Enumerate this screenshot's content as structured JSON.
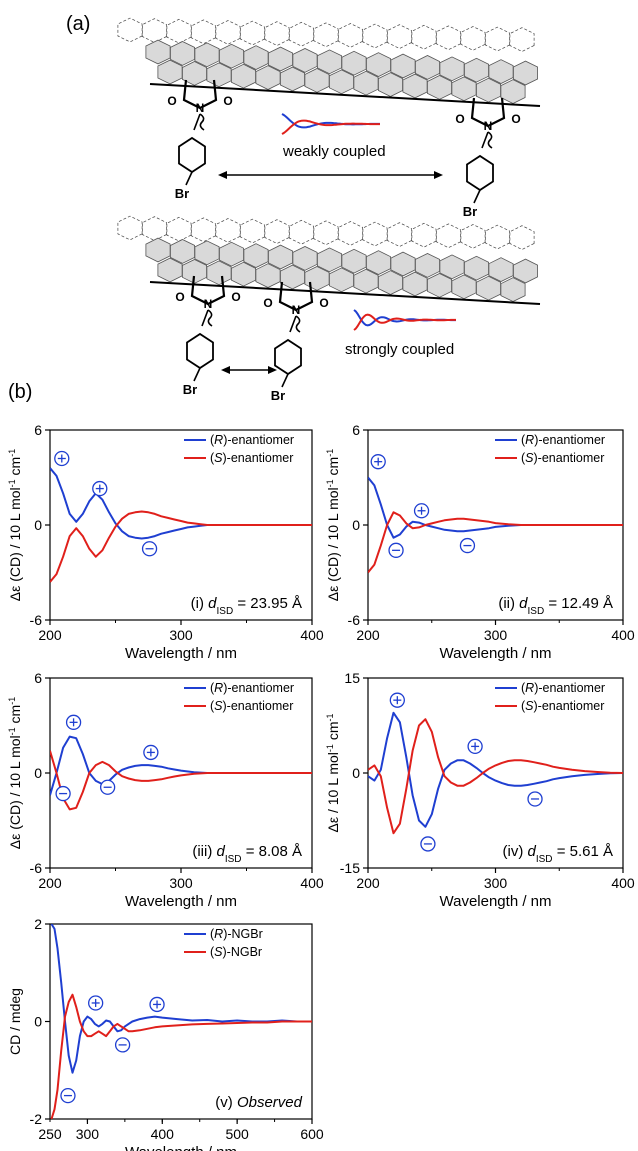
{
  "panel_a": {
    "label": "(a)",
    "weak_label": "weakly coupled",
    "strong_label": "strongly coupled",
    "atom_labels": [
      "Br",
      "N",
      "O"
    ]
  },
  "panel_b": {
    "label": "(b)"
  },
  "colors": {
    "blue": "#1f3fd1",
    "red": "#e0201b",
    "sign": "#1f3fd1",
    "graphene_fill": "#d9d9d9"
  },
  "chart_data": [
    {
      "type": "line",
      "title": "(i) d_ISD = 23.95 Å",
      "label_prefix": "(i) ",
      "label_sub": "ISD",
      "label_value": " = 23.95 Å",
      "xlabel": "Wavelength / nm",
      "ylabel": "Δε (CD) / 10 L mol-1 cm-1",
      "xlim": [
        200,
        400
      ],
      "ylim": [
        -6,
        6
      ],
      "xticks": [
        "200",
        "300",
        "400"
      ],
      "yticks": [
        "6",
        "0",
        "-6"
      ],
      "x": [
        200,
        205,
        210,
        215,
        220,
        225,
        230,
        235,
        240,
        245,
        250,
        255,
        260,
        265,
        270,
        275,
        280,
        285,
        290,
        295,
        300,
        305,
        310,
        315,
        320,
        330,
        340,
        360,
        380,
        400
      ],
      "series": [
        {
          "name": "(R)-enantiomer",
          "values": [
            3.6,
            3.1,
            2.0,
            0.7,
            0.2,
            0.7,
            1.5,
            2.0,
            1.6,
            0.8,
            0.1,
            -0.4,
            -0.7,
            -0.8,
            -0.85,
            -0.8,
            -0.7,
            -0.55,
            -0.45,
            -0.35,
            -0.25,
            -0.15,
            -0.1,
            -0.05,
            0,
            0,
            0,
            0,
            0,
            0
          ]
        },
        {
          "name": "(S)-enantiomer",
          "values": [
            -3.6,
            -3.1,
            -2.0,
            -0.7,
            -0.2,
            -0.7,
            -1.5,
            -2.0,
            -1.6,
            -0.8,
            -0.1,
            0.4,
            0.7,
            0.8,
            0.85,
            0.8,
            0.7,
            0.55,
            0.45,
            0.35,
            0.25,
            0.15,
            0.1,
            0.05,
            0,
            0,
            0,
            0,
            0,
            0
          ]
        }
      ],
      "signs": [
        {
          "s": "+",
          "x": 209,
          "y": 4.2
        },
        {
          "s": "+",
          "x": 238,
          "y": 2.3
        },
        {
          "s": "−",
          "x": 276,
          "y": -1.5
        }
      ]
    },
    {
      "type": "line",
      "title": "(ii) d_ISD = 12.49 Å",
      "label_prefix": "(ii) ",
      "label_sub": "ISD",
      "label_value": " = 12.49 Å",
      "xlabel": "Wavelength / nm",
      "ylabel": "Δε (CD) / 10 L mol-1 cm-1",
      "xlim": [
        200,
        400
      ],
      "ylim": [
        -6,
        6
      ],
      "xticks": [
        "200",
        "300",
        "400"
      ],
      "yticks": [
        "6",
        "0",
        "-6"
      ],
      "x": [
        200,
        205,
        210,
        215,
        220,
        225,
        230,
        235,
        240,
        245,
        250,
        255,
        260,
        265,
        270,
        275,
        280,
        285,
        290,
        295,
        300,
        310,
        320,
        340,
        360,
        380,
        400
      ],
      "series": [
        {
          "name": "(R)-enantiomer",
          "values": [
            3.0,
            2.5,
            1.3,
            0.0,
            -0.8,
            -0.6,
            -0.1,
            0.2,
            0.15,
            0.0,
            -0.1,
            -0.2,
            -0.3,
            -0.35,
            -0.4,
            -0.4,
            -0.35,
            -0.3,
            -0.25,
            -0.2,
            -0.12,
            -0.05,
            0,
            0,
            0,
            0,
            0
          ]
        },
        {
          "name": "(S)-enantiomer",
          "values": [
            -3.0,
            -2.5,
            -1.3,
            0.0,
            0.8,
            0.6,
            0.1,
            -0.2,
            -0.15,
            0.0,
            0.1,
            0.2,
            0.3,
            0.35,
            0.4,
            0.4,
            0.35,
            0.3,
            0.25,
            0.2,
            0.12,
            0.05,
            0,
            0,
            0,
            0,
            0
          ]
        }
      ],
      "signs": [
        {
          "s": "+",
          "x": 208,
          "y": 4.0
        },
        {
          "s": "−",
          "x": 222,
          "y": -1.6
        },
        {
          "s": "+",
          "x": 242,
          "y": 0.9
        },
        {
          "s": "−",
          "x": 278,
          "y": -1.3
        }
      ]
    },
    {
      "type": "line",
      "title": "(iii) d_ISD = 8.08 Å",
      "label_prefix": "(iii) ",
      "label_sub": "ISD",
      "label_value": " = 8.08 Å",
      "xlabel": "Wavelength / nm",
      "ylabel": "Δε (CD) / 10 L mol-1 cm-1",
      "xlim": [
        200,
        400
      ],
      "ylim": [
        -6,
        6
      ],
      "xticks": [
        "200",
        "300",
        "400"
      ],
      "yticks": [
        "6",
        "0",
        "-6"
      ],
      "x": [
        200,
        205,
        210,
        215,
        220,
        225,
        230,
        235,
        240,
        245,
        250,
        255,
        260,
        265,
        270,
        275,
        280,
        285,
        290,
        295,
        300,
        310,
        320,
        340,
        360,
        380,
        400
      ],
      "series": [
        {
          "name": "(R)-enantiomer",
          "values": [
            -1.4,
            0.0,
            1.6,
            2.3,
            2.2,
            1.2,
            0.0,
            -0.5,
            -0.7,
            -0.5,
            -0.1,
            0.2,
            0.35,
            0.45,
            0.5,
            0.5,
            0.45,
            0.4,
            0.3,
            0.22,
            0.15,
            0.05,
            0,
            0,
            0,
            0,
            0
          ]
        },
        {
          "name": "(S)-enantiomer",
          "values": [
            1.4,
            0.0,
            -1.6,
            -2.3,
            -2.2,
            -1.2,
            0.0,
            0.5,
            0.7,
            0.5,
            0.1,
            -0.2,
            -0.35,
            -0.45,
            -0.5,
            -0.5,
            -0.45,
            -0.4,
            -0.3,
            -0.22,
            -0.15,
            -0.05,
            0,
            0,
            0,
            0,
            0
          ]
        }
      ],
      "signs": [
        {
          "s": "+",
          "x": 218,
          "y": 3.2
        },
        {
          "s": "−",
          "x": 210,
          "y": -1.3
        },
        {
          "s": "−",
          "x": 244,
          "y": -0.9
        },
        {
          "s": "+",
          "x": 277,
          "y": 1.3
        }
      ]
    },
    {
      "type": "line",
      "title": "(iv) d_ISD = 5.61 Å",
      "label_prefix": "(iv) ",
      "label_sub": "ISD",
      "label_value": " = 5.61 Å",
      "xlabel": "Wavelength / nm",
      "ylabel": "Δε / 10 L mol-1 cm-1",
      "xlim": [
        200,
        400
      ],
      "ylim": [
        -15,
        15
      ],
      "xticks": [
        "200",
        "300",
        "400"
      ],
      "yticks": [
        "15",
        "0",
        "-15"
      ],
      "x": [
        200,
        205,
        210,
        215,
        220,
        225,
        230,
        235,
        240,
        245,
        250,
        255,
        260,
        265,
        270,
        275,
        280,
        285,
        290,
        295,
        300,
        305,
        310,
        315,
        320,
        325,
        330,
        335,
        340,
        345,
        350,
        360,
        370,
        380,
        390,
        400
      ],
      "series": [
        {
          "name": "(R)-enantiomer",
          "values": [
            -0.5,
            -1.2,
            0.5,
            5.5,
            9.5,
            8.0,
            2.5,
            -3.5,
            -7.5,
            -8.5,
            -6.5,
            -2.5,
            0.5,
            1.5,
            2.0,
            2.0,
            1.5,
            0.8,
            0.0,
            -0.7,
            -1.2,
            -1.6,
            -1.9,
            -2.0,
            -2.0,
            -1.9,
            -1.7,
            -1.5,
            -1.3,
            -1.0,
            -0.8,
            -0.5,
            -0.3,
            -0.15,
            -0.05,
            0
          ]
        },
        {
          "name": "(S)-enantiomer",
          "values": [
            0.5,
            1.2,
            -0.5,
            -5.5,
            -9.5,
            -8.0,
            -2.5,
            3.5,
            7.5,
            8.5,
            6.5,
            2.5,
            -0.5,
            -1.5,
            -2.0,
            -2.0,
            -1.5,
            -0.8,
            0.0,
            0.7,
            1.2,
            1.6,
            1.9,
            2.0,
            2.0,
            1.9,
            1.7,
            1.5,
            1.3,
            1.0,
            0.8,
            0.5,
            0.3,
            0.15,
            0.05,
            0
          ]
        }
      ],
      "signs": [
        {
          "s": "+",
          "x": 223,
          "y": 11.5
        },
        {
          "s": "−",
          "x": 247,
          "y": -11.2
        },
        {
          "s": "+",
          "x": 284,
          "y": 4.2
        },
        {
          "s": "−",
          "x": 331,
          "y": -4.1
        }
      ]
    },
    {
      "type": "line",
      "title": "(v) Observed",
      "label_prefix": "(v) ",
      "label_sub": "",
      "label_value": "Observed",
      "xlabel": "Wavelength / nm",
      "ylabel": "CD / mdeg",
      "xlim": [
        250,
        600
      ],
      "ylim": [
        -2,
        2
      ],
      "xticks": [
        "300",
        "400",
        "500",
        "600"
      ],
      "yticks": [
        "2",
        "0",
        "-2"
      ],
      "xtick_values": [
        300,
        400,
        500,
        600
      ],
      "xtick_labels_extra": [
        "250"
      ],
      "x": [
        252,
        256,
        260,
        265,
        270,
        275,
        280,
        285,
        290,
        295,
        300,
        305,
        310,
        315,
        320,
        325,
        330,
        335,
        340,
        345,
        350,
        355,
        360,
        370,
        380,
        390,
        400,
        420,
        440,
        460,
        480,
        500,
        520,
        540,
        560,
        580,
        600
      ],
      "series": [
        {
          "name": "(R)-NGBr",
          "values": [
            2.0,
            1.9,
            1.5,
            0.8,
            0.0,
            -0.7,
            -1.05,
            -0.8,
            -0.3,
            0.0,
            0.1,
            0.05,
            -0.05,
            -0.1,
            -0.05,
            0.02,
            0.0,
            -0.1,
            -0.2,
            -0.18,
            -0.1,
            -0.05,
            0.0,
            0.05,
            0.08,
            0.1,
            0.08,
            0.05,
            0.02,
            0.03,
            0.0,
            0.02,
            0.0,
            0.0,
            0.02,
            0.0,
            0.0
          ]
        },
        {
          "name": "(S)-NGBr",
          "values": [
            -2.0,
            -1.8,
            -1.4,
            -0.6,
            0.1,
            0.4,
            0.55,
            0.3,
            0.0,
            -0.2,
            -0.3,
            -0.3,
            -0.25,
            -0.2,
            -0.25,
            -0.3,
            -0.2,
            -0.1,
            -0.05,
            -0.1,
            -0.15,
            -0.2,
            -0.2,
            -0.18,
            -0.15,
            -0.12,
            -0.1,
            -0.08,
            -0.06,
            -0.05,
            -0.04,
            -0.03,
            -0.02,
            -0.02,
            0.0,
            0.0,
            0.0
          ]
        }
      ],
      "signs": [
        {
          "s": "+",
          "x": 311,
          "y": 0.38
        },
        {
          "s": "+",
          "x": 393,
          "y": 0.35
        },
        {
          "s": "−",
          "x": 347,
          "y": -0.48
        },
        {
          "s": "−",
          "x": 274,
          "y": -1.52
        }
      ]
    }
  ]
}
